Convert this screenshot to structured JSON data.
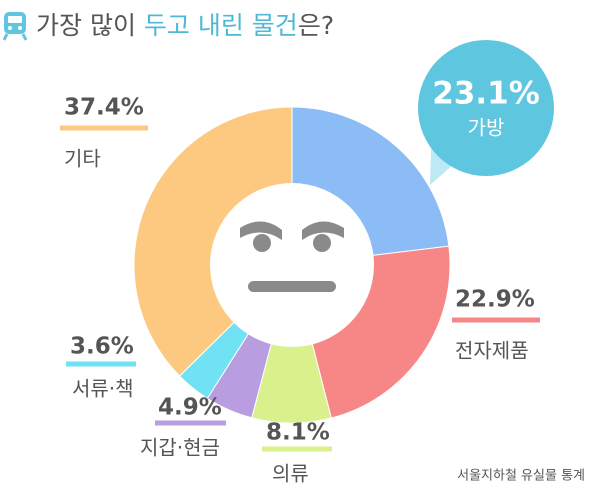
{
  "chart_data": {
    "type": "pie",
    "title_parts": [
      "가장 많이 ",
      "두고 내린 물건",
      "은?"
    ],
    "categories": [
      "가방",
      "전자제품",
      "의류",
      "지갑·현금",
      "서류·책",
      "기타"
    ],
    "values": [
      23.1,
      22.9,
      8.1,
      4.9,
      3.6,
      37.4
    ],
    "value_labels": [
      "23.1%",
      "22.9%",
      "8.1%",
      "4.9%",
      "3.6%",
      "37.4%"
    ],
    "colors": [
      "#8bbcf5",
      "#f78787",
      "#daf08c",
      "#b89de0",
      "#70e2f3",
      "#fdc980"
    ],
    "source": "서울지하철 유실물 통계"
  }
}
